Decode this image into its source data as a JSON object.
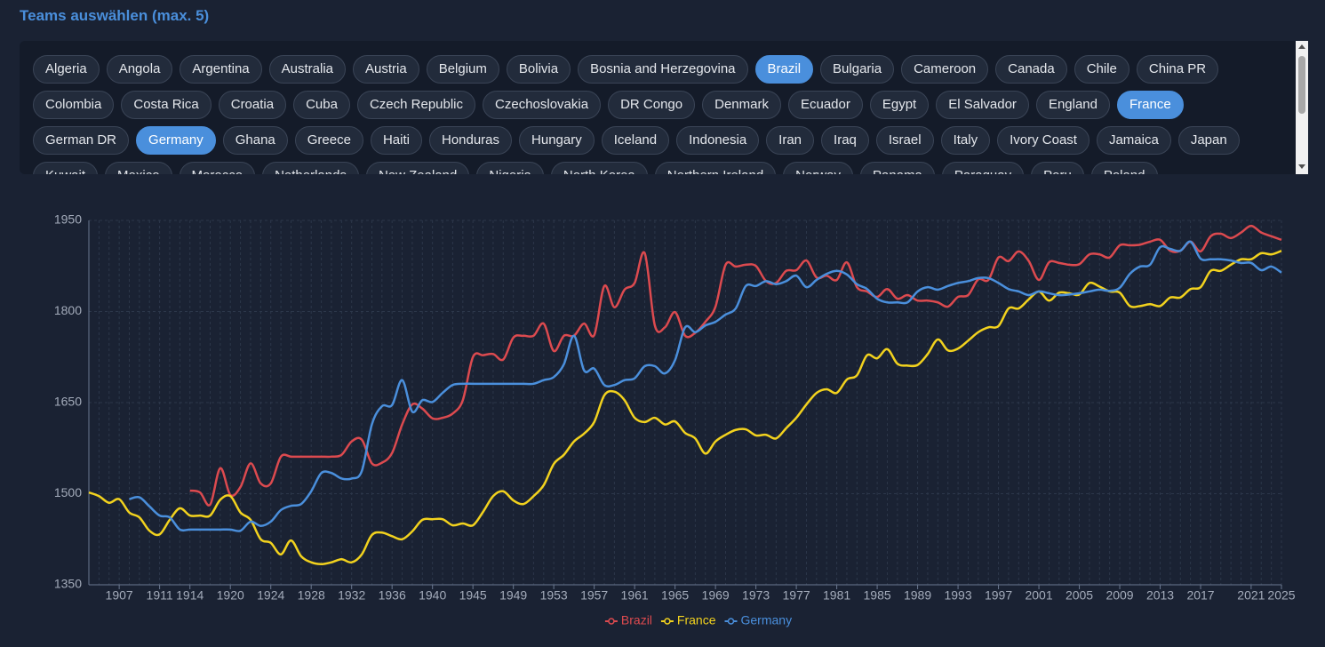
{
  "header": {
    "title": "Teams auswählen (max. 5)"
  },
  "teams": [
    {
      "name": "Algeria",
      "selected": false
    },
    {
      "name": "Angola",
      "selected": false
    },
    {
      "name": "Argentina",
      "selected": false
    },
    {
      "name": "Australia",
      "selected": false
    },
    {
      "name": "Austria",
      "selected": false
    },
    {
      "name": "Belgium",
      "selected": false
    },
    {
      "name": "Bolivia",
      "selected": false
    },
    {
      "name": "Bosnia and Herzegovina",
      "selected": false
    },
    {
      "name": "Brazil",
      "selected": true
    },
    {
      "name": "Bulgaria",
      "selected": false
    },
    {
      "name": "Cameroon",
      "selected": false
    },
    {
      "name": "Canada",
      "selected": false
    },
    {
      "name": "Chile",
      "selected": false
    },
    {
      "name": "China PR",
      "selected": false
    },
    {
      "name": "Colombia",
      "selected": false
    },
    {
      "name": "Costa Rica",
      "selected": false
    },
    {
      "name": "Croatia",
      "selected": false
    },
    {
      "name": "Cuba",
      "selected": false
    },
    {
      "name": "Czech Republic",
      "selected": false
    },
    {
      "name": "Czechoslovakia",
      "selected": false
    },
    {
      "name": "DR Congo",
      "selected": false
    },
    {
      "name": "Denmark",
      "selected": false
    },
    {
      "name": "Ecuador",
      "selected": false
    },
    {
      "name": "Egypt",
      "selected": false
    },
    {
      "name": "El Salvador",
      "selected": false
    },
    {
      "name": "England",
      "selected": false
    },
    {
      "name": "France",
      "selected": true
    },
    {
      "name": "German DR",
      "selected": false
    },
    {
      "name": "Germany",
      "selected": true
    },
    {
      "name": "Ghana",
      "selected": false
    },
    {
      "name": "Greece",
      "selected": false
    },
    {
      "name": "Haiti",
      "selected": false
    },
    {
      "name": "Honduras",
      "selected": false
    },
    {
      "name": "Hungary",
      "selected": false
    },
    {
      "name": "Iceland",
      "selected": false
    },
    {
      "name": "Indonesia",
      "selected": false
    },
    {
      "name": "Iran",
      "selected": false
    },
    {
      "name": "Iraq",
      "selected": false
    },
    {
      "name": "Israel",
      "selected": false
    },
    {
      "name": "Italy",
      "selected": false
    },
    {
      "name": "Ivory Coast",
      "selected": false
    },
    {
      "name": "Jamaica",
      "selected": false
    },
    {
      "name": "Japan",
      "selected": false
    },
    {
      "name": "Kuwait",
      "selected": false
    },
    {
      "name": "Mexico",
      "selected": false
    },
    {
      "name": "Morocco",
      "selected": false
    },
    {
      "name": "Netherlands",
      "selected": false
    },
    {
      "name": "New Zealand",
      "selected": false
    },
    {
      "name": "Nigeria",
      "selected": false
    },
    {
      "name": "North Korea",
      "selected": false
    },
    {
      "name": "Northern Ireland",
      "selected": false
    },
    {
      "name": "Norway",
      "selected": false
    },
    {
      "name": "Panama",
      "selected": false
    },
    {
      "name": "Paraguay",
      "selected": false
    },
    {
      "name": "Peru",
      "selected": false
    },
    {
      "name": "Poland",
      "selected": false
    }
  ],
  "chart_data": {
    "type": "line",
    "grid": true,
    "legend": "bottom",
    "ylim": [
      1350,
      1950
    ],
    "yticks": [
      1350,
      1500,
      1650,
      1800,
      1950
    ],
    "categories": [
      null,
      null,
      null,
      "1907",
      null,
      null,
      null,
      "1911",
      null,
      null,
      "1914",
      null,
      null,
      null,
      "1920",
      null,
      null,
      null,
      "1924",
      null,
      null,
      null,
      "1928",
      null,
      null,
      null,
      "1932",
      null,
      null,
      null,
      "1936",
      null,
      null,
      null,
      "1940",
      null,
      null,
      null,
      "1945",
      null,
      null,
      null,
      "1949",
      null,
      null,
      null,
      "1953",
      null,
      null,
      null,
      "1957",
      null,
      null,
      null,
      "1961",
      null,
      null,
      null,
      "1965",
      null,
      null,
      null,
      "1969",
      null,
      null,
      null,
      "1973",
      null,
      null,
      null,
      "1977",
      null,
      null,
      null,
      "1981",
      null,
      null,
      null,
      "1985",
      null,
      null,
      null,
      "1989",
      null,
      null,
      null,
      "1993",
      null,
      null,
      null,
      "1997",
      null,
      null,
      null,
      "2001",
      null,
      null,
      null,
      "2005",
      null,
      null,
      null,
      "2009",
      null,
      null,
      null,
      "2013",
      null,
      null,
      null,
      "2017",
      null,
      null,
      null,
      null,
      "2021",
      null,
      null,
      "2025"
    ],
    "series": [
      {
        "name": "Brazil",
        "color": "#dc4a4f",
        "values": [
          null,
          null,
          null,
          null,
          null,
          null,
          null,
          null,
          null,
          null,
          1505,
          1502,
          1482,
          1542,
          1498,
          1511,
          1550,
          1517,
          1517,
          1561,
          1561,
          1561,
          1561,
          1561,
          1561,
          1564,
          1586,
          1589,
          1550,
          1551,
          1567,
          1614,
          1647,
          1640,
          1624,
          1625,
          1632,
          1654,
          1725,
          1728,
          1730,
          1721,
          1757,
          1760,
          1760,
          1780,
          1735,
          1760,
          1760,
          1780,
          1761,
          1842,
          1807,
          1836,
          1847,
          1896,
          1777,
          1774,
          1799,
          1760,
          1765,
          1783,
          1808,
          1877,
          1874,
          1877,
          1875,
          1850,
          1847,
          1867,
          1868,
          1884,
          1856,
          1859,
          1852,
          1881,
          1840,
          1833,
          1824,
          1837,
          1821,
          1827,
          1818,
          1818,
          1815,
          1808,
          1824,
          1827,
          1853,
          1852,
          1889,
          1883,
          1899,
          1883,
          1852,
          1881,
          1880,
          1877,
          1878,
          1894,
          1894,
          1889,
          1909,
          1909,
          1910,
          1915,
          1918,
          1900,
          1900,
          1915,
          1899,
          1924,
          1928,
          1921,
          1930,
          1941,
          1930,
          1924,
          1918
        ]
      },
      {
        "name": "France",
        "color": "#f2d21e",
        "values": [
          1502,
          1496,
          1485,
          1491,
          1469,
          1461,
          1439,
          1433,
          1457,
          1476,
          1464,
          1464,
          1464,
          1490,
          1496,
          1469,
          1457,
          1425,
          1419,
          1400,
          1423,
          1397,
          1387,
          1384,
          1387,
          1392,
          1387,
          1400,
          1432,
          1436,
          1430,
          1425,
          1438,
          1457,
          1458,
          1458,
          1448,
          1451,
          1448,
          1470,
          1496,
          1504,
          1489,
          1483,
          1496,
          1514,
          1549,
          1564,
          1586,
          1599,
          1618,
          1662,
          1668,
          1654,
          1625,
          1618,
          1625,
          1614,
          1619,
          1600,
          1591,
          1566,
          1586,
          1597,
          1605,
          1606,
          1596,
          1597,
          1591,
          1608,
          1625,
          1647,
          1666,
          1672,
          1666,
          1688,
          1695,
          1728,
          1723,
          1738,
          1714,
          1711,
          1712,
          1730,
          1754,
          1736,
          1739,
          1752,
          1766,
          1774,
          1776,
          1805,
          1805,
          1820,
          1833,
          1818,
          1831,
          1830,
          1828,
          1847,
          1841,
          1833,
          1831,
          1809,
          1809,
          1812,
          1809,
          1823,
          1823,
          1837,
          1840,
          1867,
          1867,
          1877,
          1886,
          1886,
          1896,
          1894,
          1900
        ]
      },
      {
        "name": "Germany",
        "color": "#4a8fdc",
        "values": [
          null,
          null,
          null,
          null,
          1491,
          1494,
          1479,
          1464,
          1461,
          1441,
          1441,
          1441,
          1441,
          1441,
          1441,
          1439,
          1454,
          1447,
          1454,
          1473,
          1480,
          1483,
          1504,
          1534,
          1534,
          1525,
          1525,
          1537,
          1614,
          1644,
          1646,
          1687,
          1635,
          1654,
          1651,
          1666,
          1679,
          1681,
          1681,
          1681,
          1681,
          1681,
          1681,
          1681,
          1681,
          1687,
          1692,
          1713,
          1760,
          1703,
          1706,
          1679,
          1679,
          1687,
          1690,
          1710,
          1710,
          1698,
          1720,
          1774,
          1766,
          1777,
          1783,
          1795,
          1805,
          1842,
          1842,
          1850,
          1845,
          1850,
          1859,
          1840,
          1852,
          1862,
          1867,
          1861,
          1845,
          1837,
          1821,
          1815,
          1815,
          1815,
          1833,
          1840,
          1836,
          1842,
          1847,
          1850,
          1855,
          1855,
          1847,
          1837,
          1833,
          1827,
          1833,
          1830,
          1827,
          1828,
          1830,
          1833,
          1836,
          1834,
          1839,
          1862,
          1874,
          1877,
          1906,
          1903,
          1900,
          1915,
          1887,
          1886,
          1886,
          1884,
          1880,
          1880,
          1868,
          1874,
          1864
        ]
      }
    ]
  }
}
